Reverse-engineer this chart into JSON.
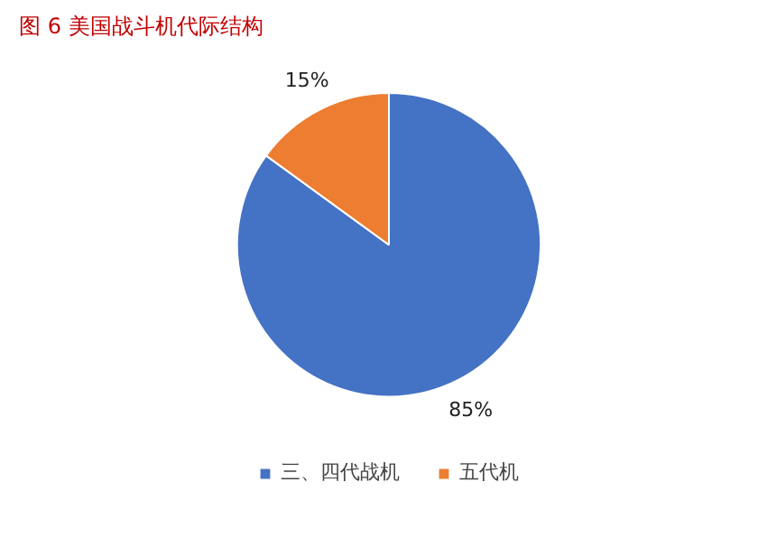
{
  "chart_data": {
    "type": "pie",
    "title": "图 6  美国战斗机代际结构",
    "categories": [
      "三、四代战机",
      "五代机"
    ],
    "values": [
      85,
      15
    ],
    "colors": [
      "#4472c4",
      "#ed7d31"
    ],
    "value_labels": [
      "85%",
      "15%"
    ],
    "legend": "bottom"
  }
}
